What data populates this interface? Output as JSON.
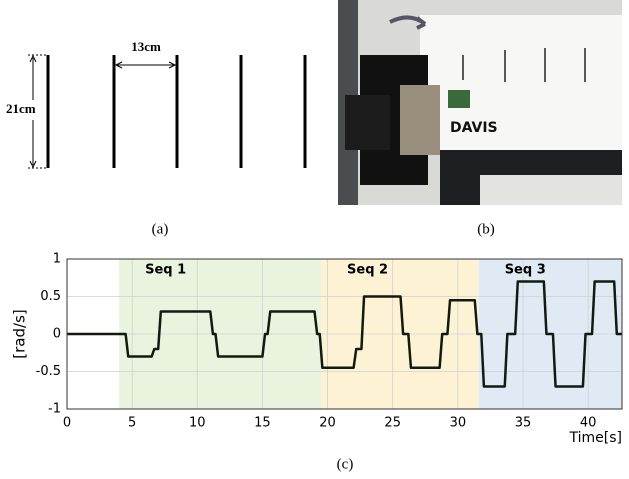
{
  "panel_a": {
    "caption": "(a)",
    "height_label": "21cm",
    "spacing_label": "13cm"
  },
  "panel_b": {
    "caption": "(b)",
    "device_label": "DAVIS"
  },
  "chart_data": {
    "type": "line",
    "caption": "(c)",
    "ylabel": "[rad/s]",
    "xlabel": "Time[s]",
    "xlim": [
      0,
      42.6
    ],
    "ylim": [
      -1,
      1
    ],
    "xticks": [
      0,
      5,
      10,
      15,
      20,
      25,
      30,
      35,
      40
    ],
    "yticks": [
      -1,
      -0.5,
      0,
      0.5,
      1
    ],
    "grid": true,
    "spans": [
      {
        "label": "Seq 1",
        "start": 4,
        "end": 19.5,
        "color": "#e9f3de"
      },
      {
        "label": "Seq 2",
        "start": 19.5,
        "end": 31.6,
        "color": "#fdf3d4"
      },
      {
        "label": "Seq 3",
        "start": 31.6,
        "end": 42.6,
        "color": "#dfeaf5"
      }
    ],
    "series": [
      {
        "color": "#111a11",
        "x": [
          0,
          4.5,
          4.7,
          6.5,
          6.7,
          7.0,
          7.2,
          11.0,
          11.2,
          11.4,
          11.6,
          15.0,
          15.2,
          15.4,
          15.6,
          19.0,
          19.2,
          19.4,
          19.6,
          22.0,
          22.2,
          22.6,
          22.8,
          25.6,
          25.8,
          26.2,
          26.4,
          28.6,
          28.8,
          29.2,
          29.4,
          31.3,
          31.5,
          31.8,
          32.0,
          33.6,
          33.8,
          34.4,
          34.6,
          36.6,
          36.8,
          37.3,
          37.5,
          39.6,
          39.8,
          40.3,
          40.5,
          42.0,
          42.2,
          42.6
        ],
        "values": [
          0,
          0,
          -0.3,
          -0.3,
          -0.2,
          -0.2,
          0.3,
          0.3,
          0,
          0,
          -0.3,
          -0.3,
          0,
          0,
          0.3,
          0.3,
          0,
          0,
          -0.45,
          -0.45,
          -0.2,
          -0.2,
          0.5,
          0.5,
          0,
          0,
          -0.45,
          -0.45,
          0,
          0,
          0.45,
          0.45,
          0,
          0,
          -0.7,
          -0.7,
          0,
          0,
          0.7,
          0.7,
          0,
          0,
          -0.7,
          -0.7,
          0,
          0,
          0.7,
          0.7,
          0,
          0
        ]
      }
    ]
  }
}
